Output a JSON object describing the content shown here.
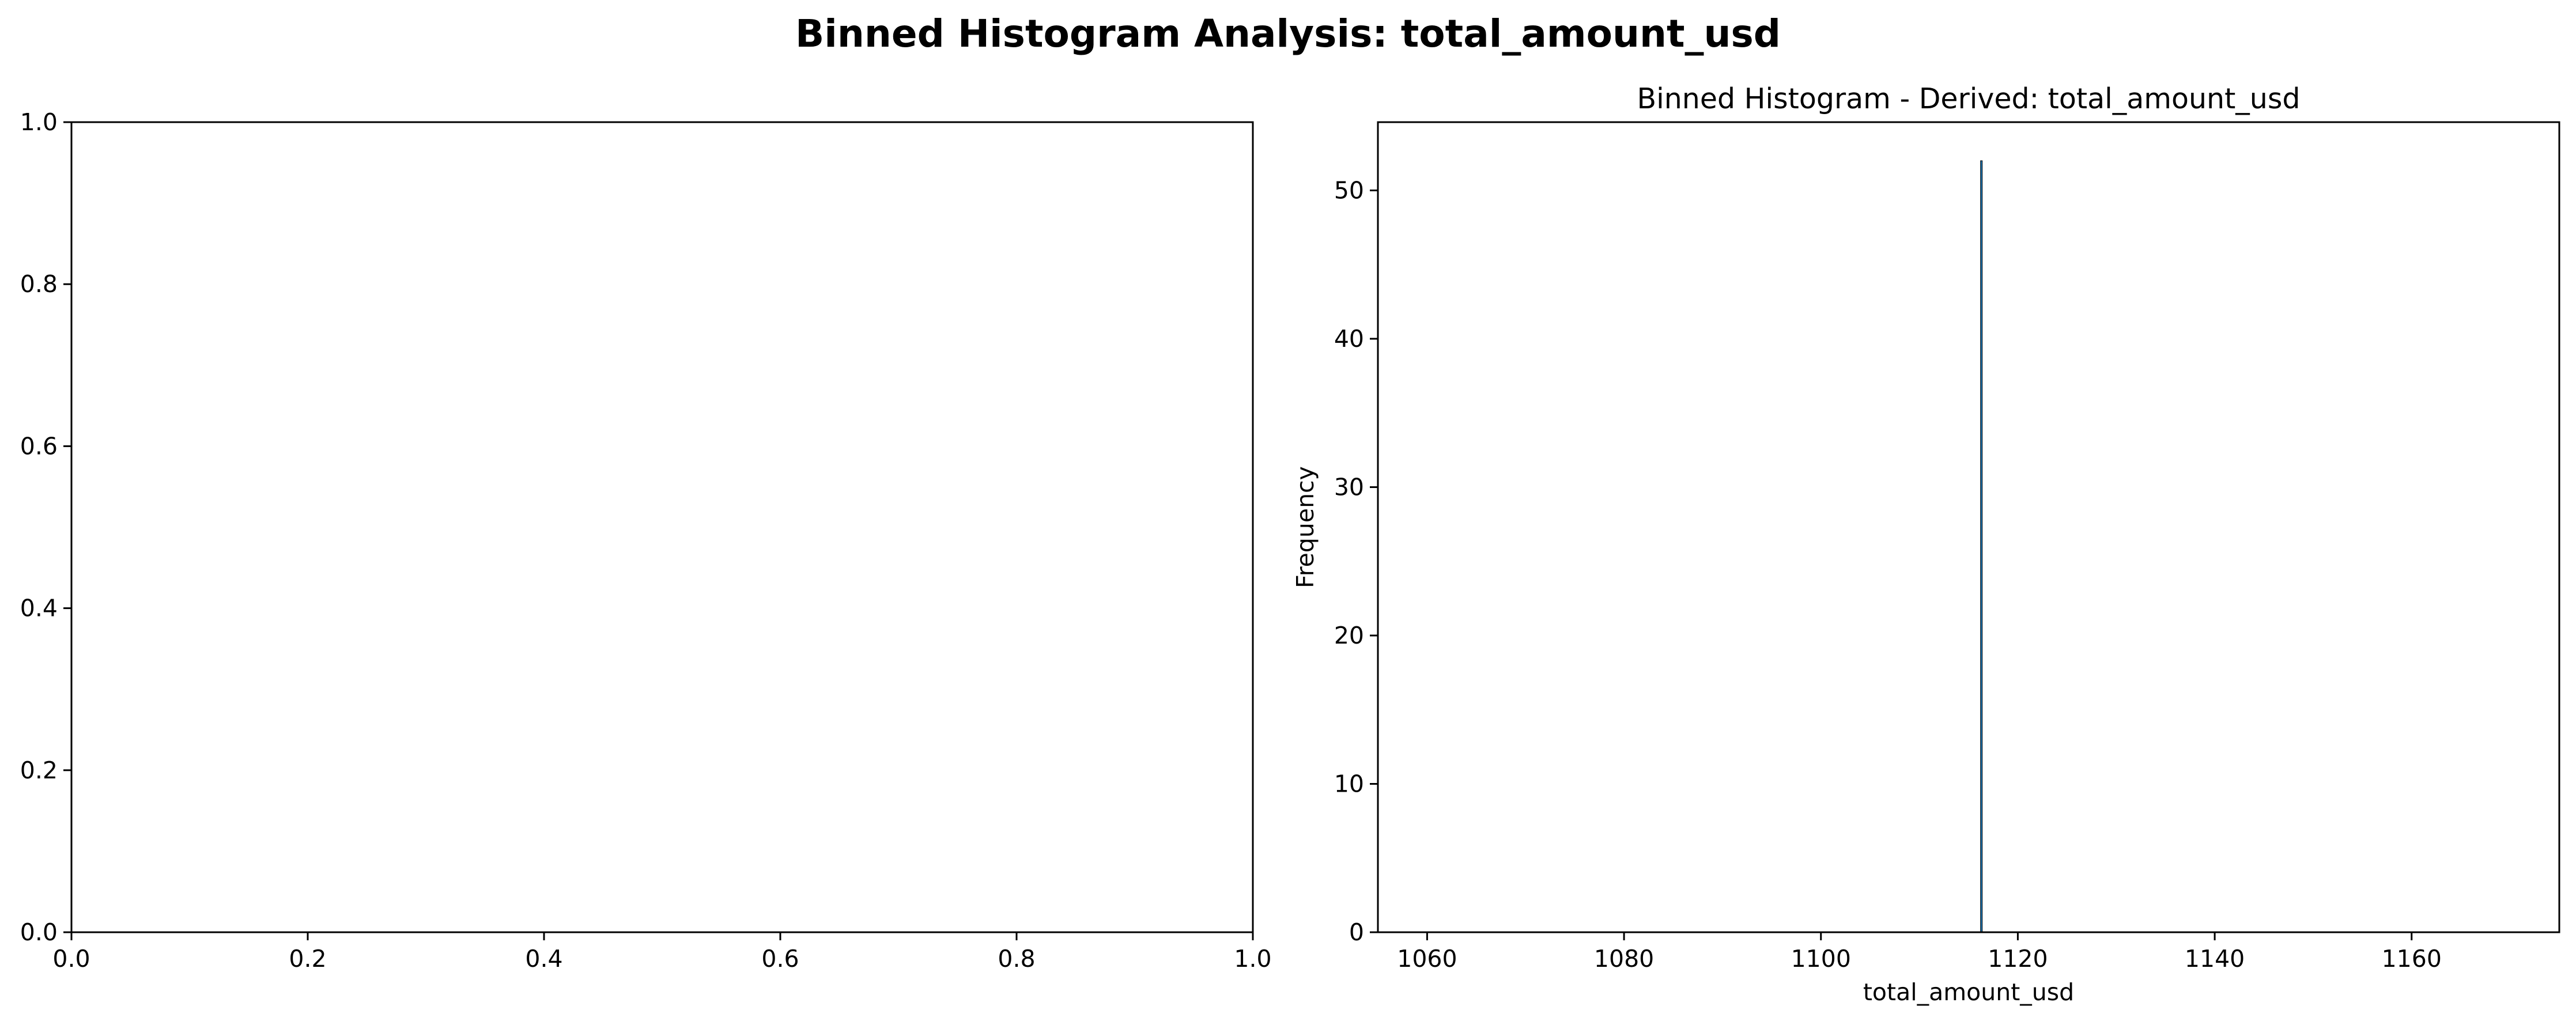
{
  "figure": {
    "title": "Binned Histogram Analysis: total_amount_usd"
  },
  "chart_data": [
    {
      "type": "bar",
      "title": "",
      "xlabel": "",
      "ylabel": "",
      "xlim": [
        0.0,
        1.0
      ],
      "ylim": [
        0.0,
        1.0
      ],
      "xticks": [
        "0.0",
        "0.2",
        "0.4",
        "0.6",
        "0.8",
        "1.0"
      ],
      "yticks": [
        "0.0",
        "0.2",
        "0.4",
        "0.6",
        "0.8",
        "1.0"
      ],
      "grid": false,
      "bins": []
    },
    {
      "type": "bar",
      "title": "Binned Histogram - Derived: total_amount_usd",
      "xlabel": "total_amount_usd",
      "ylabel": "Frequency",
      "xlim": [
        1055,
        1175
      ],
      "ylim": [
        0,
        54.6
      ],
      "xticks": [
        "1060",
        "1080",
        "1100",
        "1120",
        "1140",
        "1160"
      ],
      "yticks": [
        "0",
        "10",
        "20",
        "30",
        "40",
        "50"
      ],
      "grid": false,
      "bins": [
        {
          "x": 1116.3,
          "value": 52
        }
      ],
      "bar_color": "#1f77b4",
      "edge_color": "#000000"
    }
  ]
}
